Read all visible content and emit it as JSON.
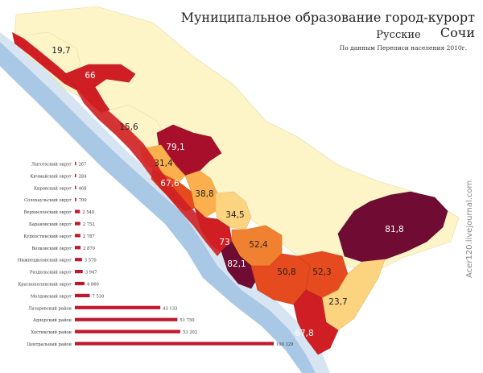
{
  "title": "Муниципальное образование город-курорт Сочи",
  "subtitle": "Русские",
  "source": "По данным Переписи населения 2010г.",
  "watermark": "Acer120.livejournal.com",
  "map_labels": [
    {
      "id": "r1",
      "value": "19,7"
    },
    {
      "id": "r2",
      "value": "66"
    },
    {
      "id": "r3",
      "value": "15,6"
    },
    {
      "id": "r4",
      "value": "79,1"
    },
    {
      "id": "r5",
      "value": "31,4"
    },
    {
      "id": "r6",
      "value": "67,6"
    },
    {
      "id": "r7",
      "value": "38,8"
    },
    {
      "id": "r8",
      "value": "34,5"
    },
    {
      "id": "r9",
      "value": "73"
    },
    {
      "id": "r10",
      "value": "52,4"
    },
    {
      "id": "r11",
      "value": "82,1"
    },
    {
      "id": "r12",
      "value": "50,8"
    },
    {
      "id": "r13",
      "value": "52,3"
    },
    {
      "id": "r14",
      "value": "81,8"
    },
    {
      "id": "r15",
      "value": "23,7"
    },
    {
      "id": "r16",
      "value": "67,8"
    }
  ],
  "chart_data": {
    "type": "bar",
    "orientation": "horizontal",
    "categories": [
      "Лыготхский округ",
      "Кичмайский округ",
      "Кировский округ",
      "Солохаульский округ",
      "Верхнелооский округ",
      "Барановский округ",
      "Кудепстинский округ",
      "Волковский округ",
      "Нижнешиловский округ",
      "Раздольский округ",
      "Краснополянский округ",
      "Молдовский округ",
      "Лазаревский район",
      "Адлерский район",
      "Хостинский район",
      "Центральный район"
    ],
    "values": [
      267,
      284,
      468,
      700,
      2540,
      2752,
      2787,
      2870,
      3570,
      3947,
      4860,
      7530,
      43133,
      51750,
      53202,
      100329
    ],
    "value_labels": [
      "267",
      "284",
      "468",
      "700",
      "2 540",
      "2 752",
      "2 787",
      "2 870",
      "3 570",
      "3 947",
      "4 860",
      "7 530",
      "43 133",
      "51 750",
      "53 202",
      "100 329"
    ],
    "bar_color": "#c0182e",
    "xlim": [
      0,
      100329
    ]
  },
  "colors": {
    "sea": "#a9c8e6",
    "coast": "#d7e5f2",
    "level1": "#fdf4c7",
    "level2": "#fcd37f",
    "level3": "#fbb04d",
    "level4": "#f08131",
    "level5": "#e64a1f",
    "level6": "#cf1f24",
    "level7": "#a80f2b",
    "level8": "#700c33"
  }
}
